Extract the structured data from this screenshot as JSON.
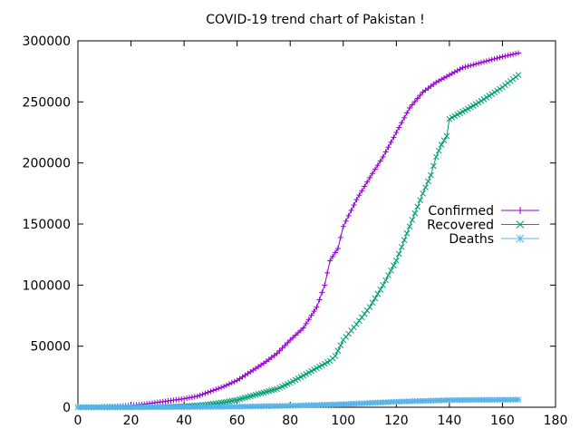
{
  "chart_data": {
    "type": "line",
    "title": "COVID-19 trend chart of Pakistan !",
    "xlabel": "",
    "ylabel": "",
    "xlim": [
      0,
      180
    ],
    "ylim": [
      0,
      300000
    ],
    "x_ticks": [
      0,
      20,
      40,
      60,
      80,
      100,
      120,
      140,
      160,
      180
    ],
    "y_ticks": [
      0,
      50000,
      100000,
      150000,
      200000,
      250000,
      300000
    ],
    "grid": false,
    "legend_position": "right",
    "series": [
      {
        "name": "Confirmed",
        "color": "#9400d3",
        "marker": "plus",
        "x": [
          0,
          5,
          10,
          15,
          20,
          25,
          30,
          35,
          40,
          45,
          50,
          55,
          60,
          65,
          70,
          75,
          80,
          85,
          90,
          93,
          95,
          98,
          100,
          105,
          110,
          115,
          120,
          125,
          130,
          135,
          140,
          145,
          150,
          155,
          160,
          166
        ],
        "y": [
          0,
          0,
          500,
          800,
          1500,
          2500,
          4000,
          5500,
          7000,
          9000,
          13000,
          17000,
          22000,
          29000,
          36000,
          44000,
          55000,
          65000,
          82000,
          100000,
          120000,
          130000,
          148000,
          170000,
          188000,
          205000,
          225000,
          245000,
          258000,
          266000,
          272000,
          278000,
          281000,
          284000,
          287000,
          290000
        ]
      },
      {
        "name": "Recovered",
        "color": "#009e73",
        "marker": "x",
        "x": [
          0,
          10,
          20,
          30,
          40,
          45,
          50,
          55,
          60,
          65,
          70,
          75,
          80,
          85,
          90,
          95,
          97,
          100,
          105,
          110,
          115,
          120,
          125,
          130,
          133,
          135,
          137,
          139,
          140,
          145,
          150,
          155,
          160,
          166
        ],
        "y": [
          0,
          0,
          0,
          200,
          800,
          1500,
          2500,
          4000,
          6000,
          9000,
          12000,
          15000,
          20000,
          26000,
          32000,
          38000,
          42000,
          55000,
          68000,
          82000,
          100000,
          120000,
          148000,
          175000,
          190000,
          205000,
          215000,
          222000,
          236000,
          242000,
          248000,
          255000,
          262000,
          272000
        ]
      },
      {
        "name": "Deaths",
        "color": "#56b4e9",
        "marker": "asterisk",
        "x": [
          0,
          20,
          40,
          60,
          80,
          100,
          110,
          120,
          130,
          140,
          150,
          160,
          166
        ],
        "y": [
          0,
          50,
          150,
          500,
          1200,
          2500,
          3500,
          4500,
          5200,
          5800,
          6000,
          6100,
          6200
        ]
      }
    ]
  }
}
